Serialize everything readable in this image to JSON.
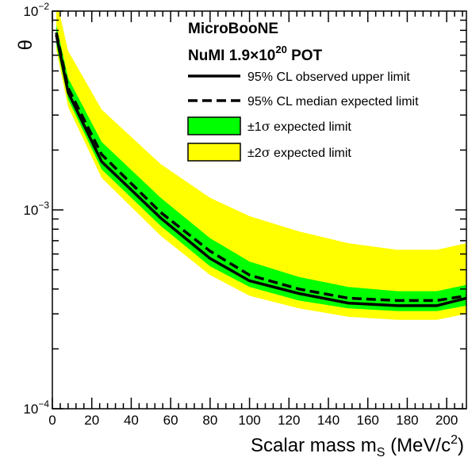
{
  "chart_data": {
    "type": "line",
    "xlabel": {
      "main": "Scalar mass m",
      "sub": "S",
      "unit_open": " (MeV/c",
      "sup": "2",
      "unit_close": ")"
    },
    "ylabel": "θ",
    "xlim": [
      0,
      210
    ],
    "ylim": [
      0.0001,
      0.01
    ],
    "y_scale": "log",
    "x_ticks": [
      0,
      20,
      40,
      60,
      80,
      100,
      120,
      140,
      160,
      180,
      200
    ],
    "y_ticks": [
      {
        "value": 0.01,
        "base": "10",
        "exp": "−2"
      },
      {
        "value": 0.001,
        "base": "10",
        "exp": "−3"
      },
      {
        "value": 0.0001,
        "base": "10",
        "exp": "−4"
      }
    ],
    "annotations": {
      "experiment": "MicroBooNE",
      "exposure_prefix": "NuMI 1.9×10",
      "exposure_exp": "20",
      "exposure_suffix": " POT"
    },
    "legend": {
      "placement": "top-right",
      "entries": [
        {
          "key": "observed",
          "label": "95% CL observed upper limit"
        },
        {
          "key": "expected",
          "label": "95% CL median expected limit"
        },
        {
          "key": "band1",
          "label_prefix": "±1",
          "label_sigma": "σ",
          "label_suffix": " expected limit"
        },
        {
          "key": "band2",
          "label_prefix": "±2",
          "label_sigma": "σ",
          "label_suffix": " expected limit"
        }
      ]
    },
    "colors": {
      "band1": "#00ff00",
      "band2": "#ffff00",
      "line": "#000000"
    },
    "x": [
      2,
      8,
      25,
      55,
      80,
      100,
      125,
      150,
      175,
      195,
      210
    ],
    "series": [
      {
        "key": "band2_upper",
        "values": [
          0.0115,
          0.0063,
          0.0032,
          0.0017,
          0.00115,
          0.00093,
          0.00078,
          0.00068,
          0.00063,
          0.00063,
          0.00068
        ]
      },
      {
        "key": "band1_upper",
        "values": [
          0.0085,
          0.0046,
          0.0022,
          0.00115,
          0.00072,
          0.00055,
          0.00046,
          0.00041,
          0.00039,
          0.00039,
          0.00042
        ]
      },
      {
        "key": "band1_lower",
        "values": [
          0.0068,
          0.0036,
          0.0016,
          0.00083,
          0.00052,
          0.00041,
          0.00035,
          0.00032,
          0.00031,
          0.00031,
          0.00033
        ]
      },
      {
        "key": "band2_lower",
        "values": [
          0.0064,
          0.0033,
          0.00145,
          0.00074,
          0.00047,
          0.00037,
          0.00032,
          0.00029,
          0.00028,
          0.00028,
          0.0003
        ]
      },
      {
        "key": "expected",
        "values": [
          0.0078,
          0.0041,
          0.0019,
          0.00097,
          0.00062,
          0.00047,
          0.0004,
          0.00036,
          0.00035,
          0.00035,
          0.00037
        ]
      },
      {
        "key": "observed",
        "values": [
          0.0076,
          0.0039,
          0.00175,
          0.00091,
          0.00057,
          0.00044,
          0.00038,
          0.00034,
          0.00033,
          0.00033,
          0.00036
        ]
      }
    ]
  }
}
